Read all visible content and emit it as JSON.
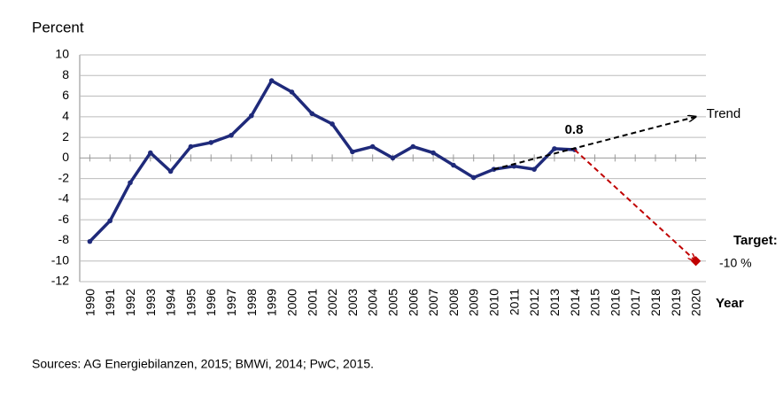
{
  "chart_data": {
    "type": "line",
    "ylabel": "Percent",
    "xlabel": "Year",
    "note": "Sources: AG Energiebilanzen, 2015; BMWi, 2014; PwC, 2015.",
    "annotations": [
      "0.8",
      "Target:",
      "-10 %"
    ],
    "x": [
      1990,
      1991,
      1992,
      1993,
      1994,
      1995,
      1996,
      1997,
      1998,
      1999,
      2000,
      2001,
      2002,
      2003,
      2004,
      2005,
      2006,
      2007,
      2008,
      2009,
      2010,
      2011,
      2012,
      2013,
      2014,
      2015,
      2016,
      2017,
      2018,
      2019,
      2020
    ],
    "xlim": [
      1989.5,
      2020.5
    ],
    "xticks": [
      1990,
      1991,
      1992,
      1993,
      1994,
      1995,
      1996,
      1997,
      1998,
      1999,
      2000,
      2001,
      2002,
      2003,
      2004,
      2005,
      2006,
      2007,
      2008,
      2009,
      2010,
      2011,
      2012,
      2013,
      2014,
      2015,
      2016,
      2017,
      2018,
      2019,
      2020
    ],
    "ylim": [
      -12,
      10
    ],
    "yticks": [
      -12,
      -10,
      -8,
      -6,
      -4,
      -2,
      0,
      2,
      4,
      6,
      8,
      10
    ],
    "grid": true,
    "series": [
      {
        "color": "#1f2a7a",
        "marker": "circle",
        "dashed": false,
        "values": [
          -8.1,
          -6.1,
          -2.4,
          0.5,
          -1.3,
          1.1,
          1.5,
          2.2,
          4.1,
          7.5,
          6.4,
          4.3,
          3.3,
          0.6,
          1.1,
          0,
          1.1,
          0.5,
          -0.7,
          -1.9,
          -1.1,
          -0.8,
          -1.1,
          0.9,
          0.8,
          null,
          null,
          null,
          null,
          null,
          null
        ]
      },
      {
        "name": "Trend",
        "color": "#000000",
        "dashed": true,
        "arrow": true,
        "values": [
          null,
          null,
          null,
          null,
          null,
          null,
          null,
          null,
          null,
          null,
          null,
          null,
          null,
          null,
          null,
          null,
          null,
          null,
          null,
          null,
          -1.1,
          null,
          null,
          null,
          null,
          null,
          null,
          null,
          null,
          null,
          4
        ]
      },
      {
        "color": "#c00000",
        "dashed": true,
        "arrow": true,
        "marker": "diamond",
        "values": [
          null,
          null,
          null,
          null,
          null,
          null,
          null,
          null,
          null,
          null,
          null,
          null,
          null,
          null,
          null,
          null,
          null,
          null,
          null,
          null,
          null,
          null,
          null,
          null,
          0.8,
          null,
          null,
          null,
          null,
          null,
          -10
        ]
      }
    ]
  }
}
